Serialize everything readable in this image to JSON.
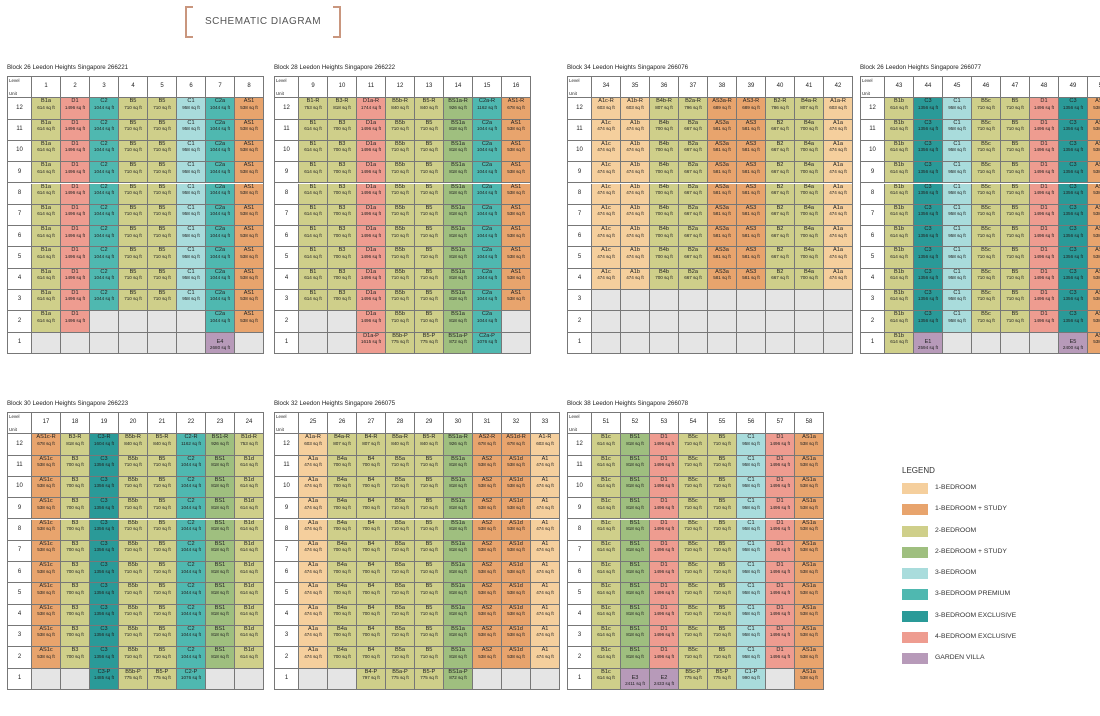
{
  "title": "SCHEMATIC DIAGRAM",
  "legend_title": "LEGEND",
  "colors": {
    "1BR": "#f5cf9d",
    "1BRS": "#e8a46d",
    "2BR": "#cfcf8a",
    "2BRS": "#9fbf7f",
    "3BR": "#a9dcdc",
    "3BRP": "#4fb8b0",
    "3BRE": "#2a9a98",
    "4BRE": "#ee9c90",
    "GV": "#b79ab9"
  },
  "legend": [
    {
      "key": "1BR",
      "label": "1-BEDROOM"
    },
    {
      "key": "1BRS",
      "label": "1-BEDROOM + STUDY"
    },
    {
      "key": "2BR",
      "label": "2-BEDROOM"
    },
    {
      "key": "2BRS",
      "label": "2-BEDROOM + STUDY"
    },
    {
      "key": "3BR",
      "label": "3-BEDROOM"
    },
    {
      "key": "3BRP",
      "label": "3-BEDROOM PREMIUM"
    },
    {
      "key": "3BRE",
      "label": "3-BEDROOM EXCLUSIVE"
    },
    {
      "key": "4BRE",
      "label": "4-BEDROOM EXCLUSIVE"
    },
    {
      "key": "GV",
      "label": "GARDEN VILLA"
    }
  ],
  "corner": {
    "level": "Level",
    "unit": "Unit"
  },
  "blocks": [
    {
      "title": "Block 26 Leedon Heights Singapore 266221",
      "units": [
        "1",
        "2",
        "3",
        "4",
        "5",
        "6",
        "7",
        "8"
      ],
      "cols": [
        {
          "u": "B1a",
          "a": "614 sq ft",
          "c": "2BR",
          "upper": [
            12,
            2
          ]
        },
        {
          "u": "D1",
          "a": "1496 sq ft",
          "c": "4BRE",
          "upper": [
            12,
            2
          ]
        },
        {
          "u": "C2",
          "a": "1044 sq ft",
          "c": "3BRP",
          "upper": [
            12,
            3
          ]
        },
        {
          "u": "B5",
          "a": "710 sq ft",
          "c": "2BR",
          "upper": [
            12,
            3
          ]
        },
        {
          "u": "B5",
          "a": "710 sq ft",
          "c": "2BR",
          "upper": [
            12,
            3
          ]
        },
        {
          "u": "C1",
          "a": "958 sq ft",
          "c": "3BR",
          "upper": [
            12,
            3
          ]
        },
        {
          "u": "C2a",
          "a": "1044 sq ft",
          "c": "3BRP",
          "upper": [
            12,
            2
          ]
        },
        {
          "u": "AS1",
          "a": "538 sq ft",
          "c": "1BRS",
          "upper": [
            12,
            2
          ]
        }
      ],
      "specials": [
        {
          "col": 6,
          "u": "E4",
          "a": "2680 sq ft",
          "c": "GV",
          "lv": 1
        }
      ]
    },
    {
      "title": "Block 28 Leedon Heights Singapore 266222",
      "units": [
        "9",
        "10",
        "11",
        "12",
        "13",
        "14",
        "15",
        "16"
      ],
      "cols": [
        {
          "u": "B1",
          "a": "614 sq ft",
          "c": "2BR",
          "upper": [
            11,
            3
          ],
          "top": {
            "u": "B1-R",
            "a": "753 sq ft",
            "c": "2BR"
          }
        },
        {
          "u": "B3",
          "a": "700 sq ft",
          "c": "2BR",
          "upper": [
            11,
            3
          ],
          "top": {
            "u": "B3-R",
            "a": "818 sq ft",
            "c": "2BR"
          }
        },
        {
          "u": "D1a",
          "a": "1496 sq ft",
          "c": "4BRE",
          "upper": [
            11,
            2
          ],
          "top": {
            "u": "D1a-R",
            "a": "1744 sq ft",
            "c": "4BRE"
          },
          "g": {
            "u": "D1a-P",
            "a": "1615 sq ft",
            "c": "4BRE"
          }
        },
        {
          "u": "B5b",
          "a": "710 sq ft",
          "c": "2BR",
          "upper": [
            11,
            2
          ],
          "top": {
            "u": "B5b-R",
            "a": "840 sq ft",
            "c": "2BR"
          },
          "g": {
            "u": "B5b-P",
            "a": "775 sq ft",
            "c": "2BR"
          }
        },
        {
          "u": "B5",
          "a": "710 sq ft",
          "c": "2BR",
          "upper": [
            11,
            2
          ],
          "top": {
            "u": "B5-R",
            "a": "840 sq ft",
            "c": "2BR"
          },
          "g": {
            "u": "B5-P",
            "a": "775 sq ft",
            "c": "2BR"
          }
        },
        {
          "u": "BS1a",
          "a": "818 sq ft",
          "c": "2BRS",
          "upper": [
            11,
            2
          ],
          "top": {
            "u": "BS1a-R",
            "a": "926 sq ft",
            "c": "2BRS"
          },
          "g": {
            "u": "BS1a-P",
            "a": "872 sq ft",
            "c": "2BRS"
          }
        },
        {
          "u": "C2a",
          "a": "1044 sq ft",
          "c": "3BRP",
          "upper": [
            11,
            2
          ],
          "top": {
            "u": "C2a-R",
            "a": "1162 sq ft",
            "c": "3BRP"
          },
          "g": {
            "u": "C2a-P",
            "a": "1076 sq ft",
            "c": "3BRP"
          }
        },
        {
          "u": "AS1",
          "a": "538 sq ft",
          "c": "1BRS",
          "upper": [
            11,
            3
          ],
          "top": {
            "u": "AS1-R",
            "a": "678 sq ft",
            "c": "1BRS"
          }
        }
      ]
    },
    {
      "title": "Block 34 Leedon Heights Singapore 266076",
      "units": [
        "34",
        "35",
        "36",
        "37",
        "38",
        "39",
        "40",
        "41",
        "42"
      ],
      "cols": [
        {
          "u": "A1c",
          "a": "474 sq ft",
          "c": "1BR",
          "upper": [
            11,
            4
          ],
          "top": {
            "u": "A1c-R",
            "a": "603 sq ft",
            "c": "1BR"
          }
        },
        {
          "u": "A1b",
          "a": "474 sq ft",
          "c": "1BR",
          "upper": [
            11,
            4
          ],
          "top": {
            "u": "A1b-R",
            "a": "603 sq ft",
            "c": "1BR"
          }
        },
        {
          "u": "B4b",
          "a": "700 sq ft",
          "c": "2BR",
          "upper": [
            11,
            4
          ],
          "top": {
            "u": "B4b-R",
            "a": "807 sq ft",
            "c": "2BR"
          }
        },
        {
          "u": "B2a",
          "a": "667 sq ft",
          "c": "2BR",
          "upper": [
            11,
            4
          ],
          "top": {
            "u": "B2a-R",
            "a": "796 sq ft",
            "c": "2BR"
          }
        },
        {
          "u": "AS3a",
          "a": "581 sq ft",
          "c": "1BRS",
          "upper": [
            11,
            4
          ],
          "top": {
            "u": "AS3a-R",
            "a": "689 sq ft",
            "c": "1BRS"
          }
        },
        {
          "u": "AS3",
          "a": "581 sq ft",
          "c": "1BRS",
          "upper": [
            11,
            4
          ],
          "top": {
            "u": "AS3-R",
            "a": "689 sq ft",
            "c": "1BRS"
          }
        },
        {
          "u": "B2",
          "a": "667 sq ft",
          "c": "2BR",
          "upper": [
            11,
            4
          ],
          "top": {
            "u": "B2-R",
            "a": "786 sq ft",
            "c": "2BR"
          }
        },
        {
          "u": "B4a",
          "a": "700 sq ft",
          "c": "2BR",
          "upper": [
            11,
            4
          ],
          "top": {
            "u": "B4a-R",
            "a": "807 sq ft",
            "c": "2BR"
          }
        },
        {
          "u": "A1a",
          "a": "474 sq ft",
          "c": "1BR",
          "upper": [
            11,
            4
          ],
          "top": {
            "u": "A1a-R",
            "a": "603 sq ft",
            "c": "1BR"
          }
        }
      ]
    },
    {
      "title": "Block 26 Leedon Heights Singapore 266077",
      "units": [
        "43",
        "44",
        "45",
        "46",
        "47",
        "48",
        "49",
        "50"
      ],
      "cols": [
        {
          "u": "B1b",
          "a": "614 sq ft",
          "c": "2BR",
          "upper": [
            12,
            1
          ]
        },
        {
          "u": "C3",
          "a": "1356 sq ft",
          "c": "3BRE",
          "upper": [
            12,
            2
          ]
        },
        {
          "u": "C1",
          "a": "958 sq ft",
          "c": "3BR",
          "upper": [
            12,
            2
          ]
        },
        {
          "u": "B5c",
          "a": "710 sq ft",
          "c": "2BR",
          "upper": [
            12,
            2
          ]
        },
        {
          "u": "B5",
          "a": "710 sq ft",
          "c": "2BR",
          "upper": [
            12,
            2
          ]
        },
        {
          "u": "D1",
          "a": "1496 sq ft",
          "c": "4BRE",
          "upper": [
            12,
            2
          ]
        },
        {
          "u": "C3",
          "a": "1356 sq ft",
          "c": "3BRE",
          "upper": [
            12,
            2
          ]
        },
        {
          "u": "AS1b",
          "a": "538 sq ft",
          "c": "1BRS",
          "upper": [
            12,
            1
          ]
        }
      ],
      "specials": [
        {
          "col": 1,
          "u": "E1",
          "a": "2594 sq ft",
          "c": "GV",
          "lv": 1
        },
        {
          "col": 6,
          "u": "E5",
          "a": "2400 sq ft",
          "c": "GV",
          "lv": 1
        }
      ]
    },
    {
      "title": "Block 30 Leedon Heights Singapore 266223",
      "units": [
        "17",
        "18",
        "19",
        "20",
        "21",
        "22",
        "23",
        "24"
      ],
      "cols": [
        {
          "u": "AS1c",
          "a": "538 sq ft",
          "c": "1BRS",
          "upper": [
            11,
            2
          ],
          "top": {
            "u": "AS1c-R",
            "a": "678 sq ft",
            "c": "1BRS"
          }
        },
        {
          "u": "B3",
          "a": "700 sq ft",
          "c": "2BR",
          "upper": [
            11,
            2
          ],
          "top": {
            "u": "B3-R",
            "a": "818 sq ft",
            "c": "2BR"
          }
        },
        {
          "u": "C3",
          "a": "1356 sq ft",
          "c": "3BRE",
          "upper": [
            11,
            2
          ],
          "top": {
            "u": "C3-R",
            "a": "1604 sq ft",
            "c": "3BRE"
          },
          "g": {
            "u": "C3-P",
            "a": "1485 sq ft",
            "c": "3BRE"
          }
        },
        {
          "u": "B5b",
          "a": "710 sq ft",
          "c": "2BR",
          "upper": [
            11,
            2
          ],
          "top": {
            "u": "B5b-R",
            "a": "840 sq ft",
            "c": "2BR"
          },
          "g": {
            "u": "B5b-P",
            "a": "775 sq ft",
            "c": "2BR"
          }
        },
        {
          "u": "B5",
          "a": "710 sq ft",
          "c": "2BR",
          "upper": [
            11,
            2
          ],
          "top": {
            "u": "B5-R",
            "a": "840 sq ft",
            "c": "2BR"
          },
          "g": {
            "u": "B5-P",
            "a": "775 sq ft",
            "c": "2BR"
          }
        },
        {
          "u": "C2",
          "a": "1044 sq ft",
          "c": "3BRP",
          "upper": [
            11,
            2
          ],
          "top": {
            "u": "C2-R",
            "a": "1162 sq ft",
            "c": "3BRP"
          },
          "g": {
            "u": "C2-P",
            "a": "1076 sq ft",
            "c": "3BRP"
          }
        },
        {
          "u": "BS1",
          "a": "818 sq ft",
          "c": "2BRS",
          "upper": [
            11,
            2
          ],
          "top": {
            "u": "BS1-R",
            "a": "926 sq ft",
            "c": "2BRS"
          }
        },
        {
          "u": "B1d",
          "a": "614 sq ft",
          "c": "2BR",
          "upper": [
            11,
            2
          ],
          "top": {
            "u": "B1d-R",
            "a": "753 sq ft",
            "c": "2BR"
          }
        }
      ]
    },
    {
      "title": "Block 32 Leedon Heights Singapore 266075",
      "units": [
        "25",
        "26",
        "27",
        "28",
        "29",
        "30",
        "31",
        "32",
        "33"
      ],
      "cols": [
        {
          "u": "A1a",
          "a": "474 sq ft",
          "c": "1BR",
          "upper": [
            11,
            2
          ],
          "top": {
            "u": "A1a-R",
            "a": "603 sq ft",
            "c": "1BR"
          }
        },
        {
          "u": "B4a",
          "a": "700 sq ft",
          "c": "2BR",
          "upper": [
            11,
            2
          ],
          "top": {
            "u": "B4a-R",
            "a": "807 sq ft",
            "c": "2BR"
          }
        },
        {
          "u": "B4",
          "a": "700 sq ft",
          "c": "2BR",
          "upper": [
            11,
            2
          ],
          "top": {
            "u": "B4-R",
            "a": "807 sq ft",
            "c": "2BR"
          },
          "g": {
            "u": "B4-P",
            "a": "797 sq ft",
            "c": "2BR"
          }
        },
        {
          "u": "B5a",
          "a": "710 sq ft",
          "c": "2BR",
          "upper": [
            11,
            2
          ],
          "top": {
            "u": "B5a-R",
            "a": "840 sq ft",
            "c": "2BR"
          },
          "g": {
            "u": "B5a-P",
            "a": "775 sq ft",
            "c": "2BR"
          }
        },
        {
          "u": "B5",
          "a": "710 sq ft",
          "c": "2BR",
          "upper": [
            11,
            2
          ],
          "top": {
            "u": "B5-R",
            "a": "840 sq ft",
            "c": "2BR"
          },
          "g": {
            "u": "B5-P",
            "a": "775 sq ft",
            "c": "2BR"
          }
        },
        {
          "u": "BS1a",
          "a": "818 sq ft",
          "c": "2BRS",
          "upper": [
            11,
            2
          ],
          "top": {
            "u": "BS1a-R",
            "a": "926 sq ft",
            "c": "2BRS"
          },
          "g": {
            "u": "BS1a-P",
            "a": "872 sq ft",
            "c": "2BRS"
          }
        },
        {
          "u": "AS2",
          "a": "538 sq ft",
          "c": "1BRS",
          "upper": [
            11,
            2
          ],
          "top": {
            "u": "AS2-R",
            "a": "678 sq ft",
            "c": "1BRS"
          }
        },
        {
          "u": "AS1d",
          "a": "538 sq ft",
          "c": "1BRS",
          "upper": [
            11,
            2
          ],
          "top": {
            "u": "AS1d-R",
            "a": "678 sq ft",
            "c": "1BRS"
          }
        },
        {
          "u": "A1",
          "a": "474 sq ft",
          "c": "1BR",
          "upper": [
            11,
            2
          ],
          "top": {
            "u": "A1-R",
            "a": "603 sq ft",
            "c": "1BR"
          }
        }
      ]
    },
    {
      "title": "Block 38 Leedon Heights Singapore 266078",
      "units": [
        "51",
        "52",
        "53",
        "54",
        "55",
        "56",
        "57",
        "58"
      ],
      "cols": [
        {
          "u": "B1c",
          "a": "614 sq ft",
          "c": "2BR",
          "upper": [
            12,
            1
          ]
        },
        {
          "u": "BS1",
          "a": "818 sq ft",
          "c": "2BRS",
          "upper": [
            12,
            2
          ]
        },
        {
          "u": "D1",
          "a": "1496 sq ft",
          "c": "4BRE",
          "upper": [
            12,
            2
          ]
        },
        {
          "u": "B5c",
          "a": "710 sq ft",
          "c": "2BR",
          "upper": [
            12,
            2
          ],
          "g": {
            "u": "B5c-P",
            "a": "775 sq ft",
            "c": "2BR"
          }
        },
        {
          "u": "B5",
          "a": "710 sq ft",
          "c": "2BR",
          "upper": [
            12,
            2
          ],
          "g": {
            "u": "B5-P",
            "a": "775 sq ft",
            "c": "2BR"
          }
        },
        {
          "u": "C1",
          "a": "958 sq ft",
          "c": "3BR",
          "upper": [
            12,
            2
          ],
          "g": {
            "u": "C1-P",
            "a": "990 sq ft",
            "c": "3BR"
          }
        },
        {
          "u": "D1",
          "a": "1496 sq ft",
          "c": "4BRE",
          "upper": [
            12,
            2
          ]
        },
        {
          "u": "AS1a",
          "a": "538 sq ft",
          "c": "1BRS",
          "upper": [
            12,
            1
          ]
        }
      ],
      "specials": [
        {
          "col": 1,
          "u": "E3",
          "a": "2411 sq ft",
          "c": "GV",
          "lv": 1
        },
        {
          "col": 2,
          "u": "E2",
          "a": "2433 sq ft",
          "c": "GV",
          "lv": 1
        }
      ]
    }
  ]
}
